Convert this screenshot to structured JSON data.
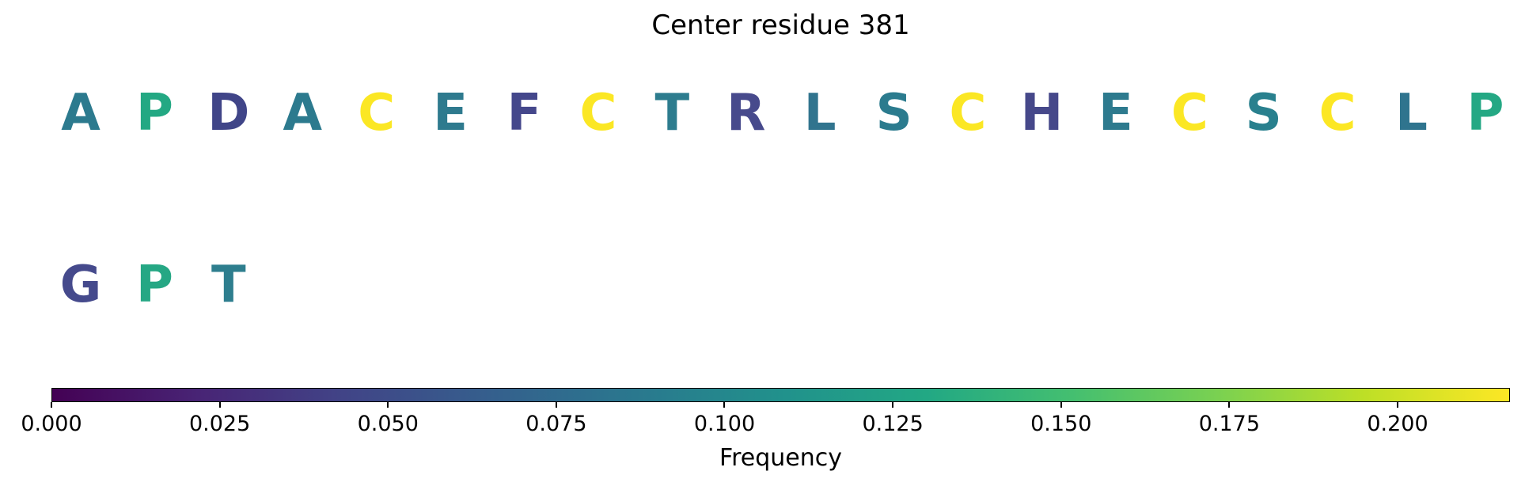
{
  "chart_data": {
    "type": "heatmap",
    "title": "Center residue 381",
    "description": "Amino-acid residues around center residue 381, each letter colored by its frequency on a viridis colormap",
    "rows": [
      {
        "letters": [
          {
            "char": "A",
            "color": "#2c7a8e",
            "frequency_est": 0.092
          },
          {
            "char": "P",
            "color": "#23a883",
            "frequency_est": 0.13
          },
          {
            "char": "D",
            "color": "#404588",
            "frequency_est": 0.043
          },
          {
            "char": "A",
            "color": "#2c7a8e",
            "frequency_est": 0.092
          },
          {
            "char": "C",
            "color": "#fbe724",
            "frequency_est": 0.214
          },
          {
            "char": "E",
            "color": "#2e7a8e",
            "frequency_est": 0.092
          },
          {
            "char": "F",
            "color": "#44478b",
            "frequency_est": 0.046
          },
          {
            "char": "C",
            "color": "#fbe724",
            "frequency_est": 0.214
          },
          {
            "char": "T",
            "color": "#2d7c8e",
            "frequency_est": 0.094
          },
          {
            "char": "R",
            "color": "#474a8c",
            "frequency_est": 0.048
          },
          {
            "char": "L",
            "color": "#31748e",
            "frequency_est": 0.086
          },
          {
            "char": "S",
            "color": "#2b7b8e",
            "frequency_est": 0.093
          },
          {
            "char": "C",
            "color": "#fbe724",
            "frequency_est": 0.214
          },
          {
            "char": "H",
            "color": "#46488a",
            "frequency_est": 0.047
          },
          {
            "char": "E",
            "color": "#2d7a8e",
            "frequency_est": 0.092
          },
          {
            "char": "C",
            "color": "#fbe724",
            "frequency_est": 0.214
          },
          {
            "char": "S",
            "color": "#29808e",
            "frequency_est": 0.098
          },
          {
            "char": "C",
            "color": "#fce724",
            "frequency_est": 0.215
          },
          {
            "char": "L",
            "color": "#2f748e",
            "frequency_est": 0.086
          },
          {
            "char": "P",
            "color": "#24a884",
            "frequency_est": 0.131
          }
        ]
      },
      {
        "letters": [
          {
            "char": "G",
            "color": "#454a8c",
            "frequency_est": 0.047
          },
          {
            "char": "P",
            "color": "#25a784",
            "frequency_est": 0.129
          },
          {
            "char": "T",
            "color": "#2e7e8e",
            "frequency_est": 0.096
          }
        ]
      }
    ],
    "colorbar": {
      "label": "Frequency",
      "colormap": "viridis",
      "vmin": 0.0,
      "vmax": 0.2167,
      "ticks": [
        0.0,
        0.025,
        0.05,
        0.075,
        0.1,
        0.125,
        0.15,
        0.175,
        0.2
      ],
      "tick_labels": [
        "0.000",
        "0.025",
        "0.050",
        "0.075",
        "0.100",
        "0.125",
        "0.150",
        "0.175",
        "0.200"
      ]
    }
  }
}
